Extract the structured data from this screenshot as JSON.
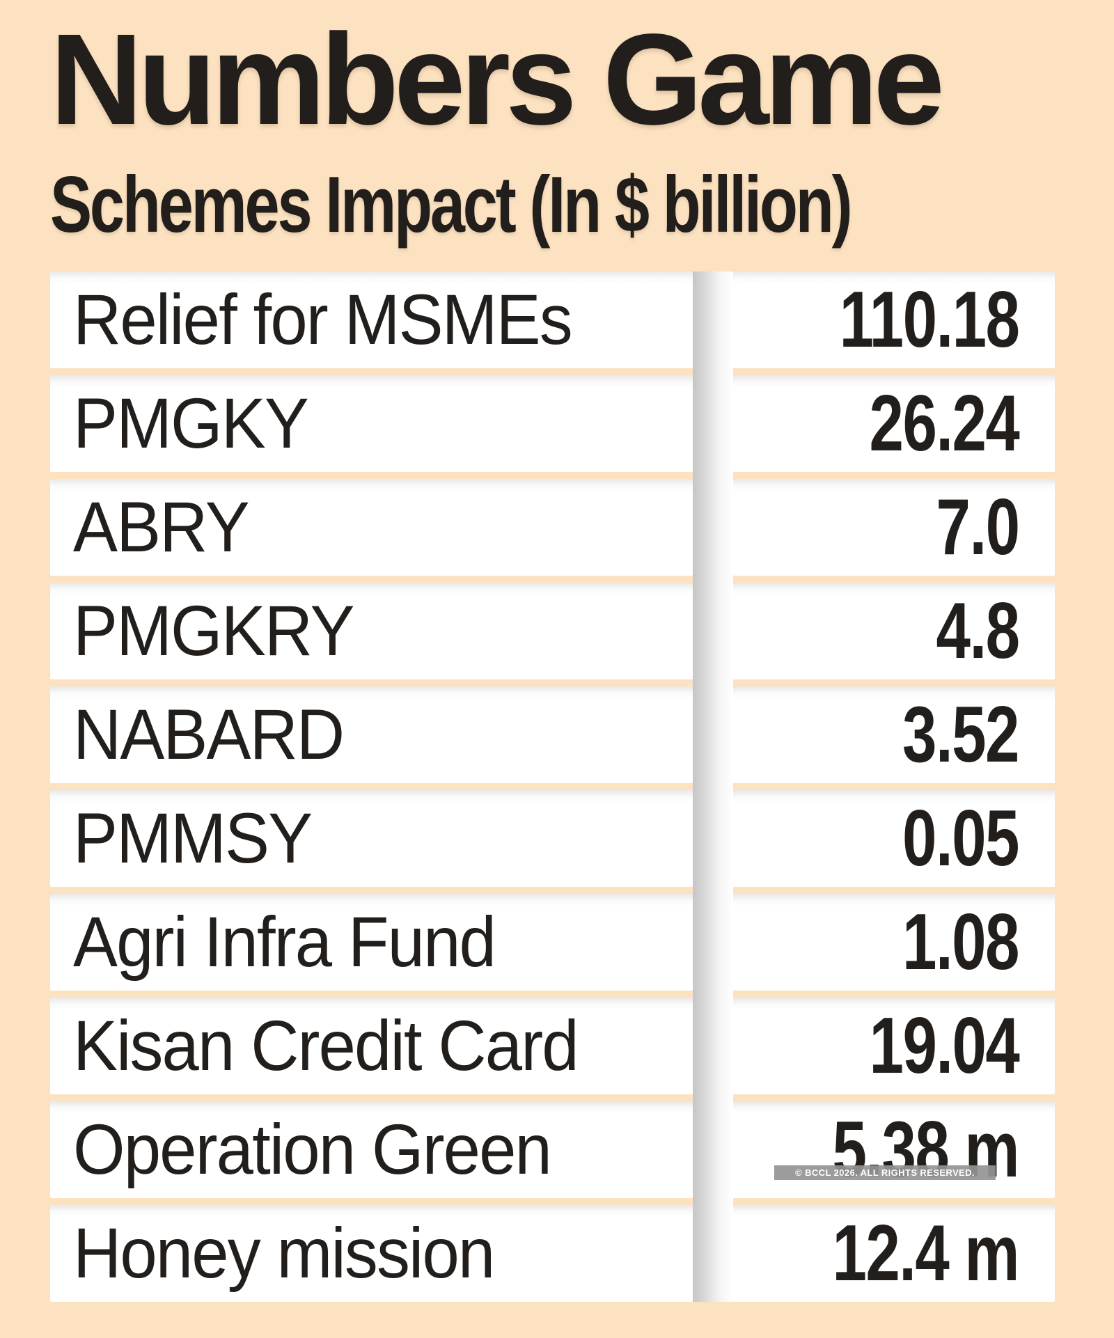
{
  "page": {
    "background_color": "#fce2c1",
    "ink_color": "#221e1b"
  },
  "header": {
    "title": "Numbers Game",
    "subtitle": "Schemes Impact (In $ billion)"
  },
  "table": {
    "rows": [
      {
        "label": "Relief for MSMEs",
        "value": "110.18"
      },
      {
        "label": "PMGKY",
        "value": "26.24"
      },
      {
        "label": "ABRY",
        "value": "7.0"
      },
      {
        "label": "PMGKRY",
        "value": "4.8"
      },
      {
        "label": "NABARD",
        "value": "3.52"
      },
      {
        "label": "PMMSY",
        "value": "0.05"
      },
      {
        "label": "Agri Infra Fund",
        "value": "1.08"
      },
      {
        "label": "Kisan Credit Card",
        "value": "19.04"
      },
      {
        "label": "Operation Green",
        "value": "5.38 m"
      },
      {
        "label": "Honey mission",
        "value": "12.4 m"
      }
    ]
  },
  "watermark": {
    "text": "© BCCL 2026. ALL RIGHTS RESERVED."
  },
  "chart_data": {
    "type": "table",
    "title": "Numbers Game",
    "subtitle": "Schemes Impact (In $ billion)",
    "unit": "$ billion; values suffixed 'm' are in millions",
    "categories": [
      "Relief for MSMEs",
      "PMGKY",
      "ABRY",
      "PMGKRY",
      "NABARD",
      "PMMSY",
      "Agri Infra Fund",
      "Kisan Credit Card",
      "Operation Green",
      "Honey mission"
    ],
    "values": [
      110.18,
      26.24,
      7.0,
      4.8,
      3.52,
      0.05,
      1.08,
      19.04,
      5.38,
      12.4
    ],
    "values_display": [
      "110.18",
      "26.24",
      "7.0",
      "4.8",
      "3.52",
      "0.05",
      "1.08",
      "19.04",
      "5.38 m",
      "12.4 m"
    ]
  }
}
